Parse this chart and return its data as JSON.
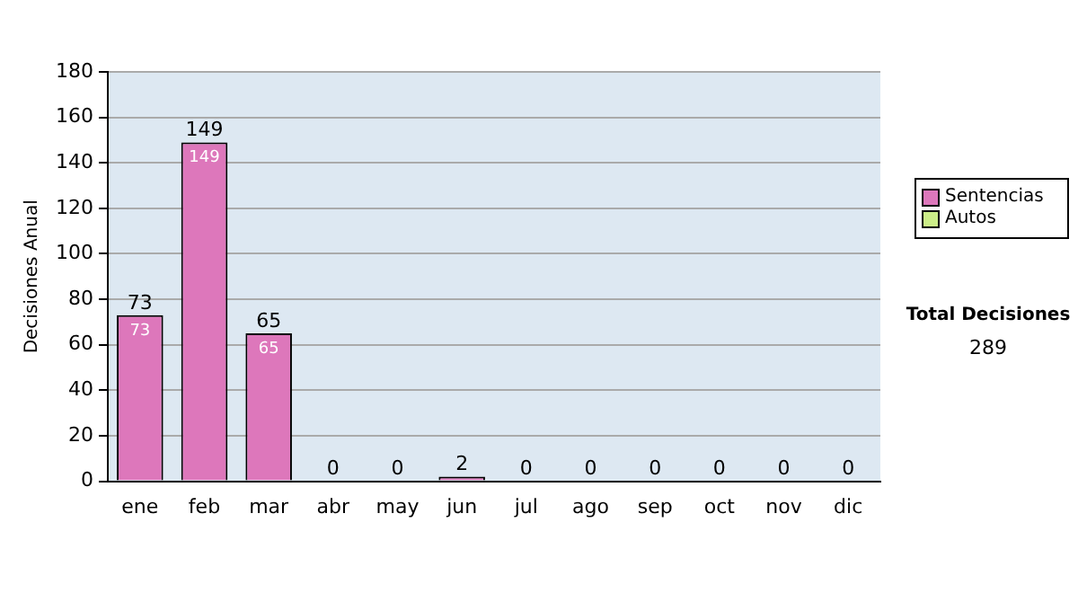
{
  "chart_data": {
    "type": "bar",
    "ylabel": "Decisiones Anual",
    "categories": [
      "ene",
      "feb",
      "mar",
      "abr",
      "may",
      "jun",
      "jul",
      "ago",
      "sep",
      "oct",
      "nov",
      "dic"
    ],
    "series": [
      {
        "name": "Sentencias",
        "color": "#dd77bb",
        "values": [
          73,
          149,
          65,
          0,
          0,
          2,
          0,
          0,
          0,
          0,
          0,
          0
        ],
        "value_labels": [
          "73",
          "149",
          "65",
          null,
          null,
          null,
          null,
          null,
          null,
          null,
          null,
          null
        ]
      },
      {
        "name": "Autos",
        "color": "#ccee88",
        "values": [
          0,
          0,
          0,
          0,
          0,
          0,
          0,
          0,
          0,
          0,
          0,
          0
        ]
      }
    ],
    "stacked": true,
    "totals": [
      "73",
      "149",
      "65",
      "0",
      "0",
      "2",
      "0",
      "0",
      "0",
      "0",
      "0",
      "0"
    ],
    "ylim": [
      0,
      180
    ],
    "yticks": [
      0,
      20,
      40,
      60,
      80,
      100,
      120,
      140,
      160,
      180
    ],
    "grid": "y",
    "legend": "right",
    "annotations": [
      "Total Decisiones",
      "289"
    ]
  }
}
